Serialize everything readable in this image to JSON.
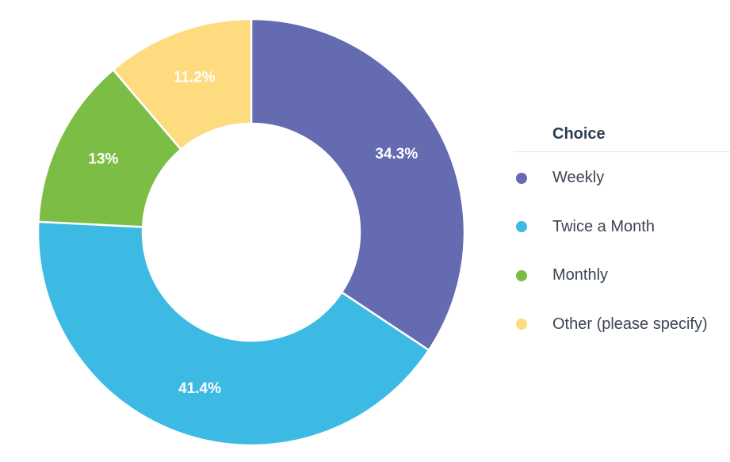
{
  "chart_data": {
    "type": "pie",
    "donut": true,
    "legend_title": "Choice",
    "legend_position": "right",
    "slices": [
      {
        "name": "Weekly",
        "value": 34.3,
        "label": "34.3%",
        "color": "#646bb0"
      },
      {
        "name": "Twice a Month",
        "value": 41.4,
        "label": "41.4%",
        "color": "#3cbae3"
      },
      {
        "name": "Monthly",
        "value": 13,
        "label": "13%",
        "color": "#7cbe45"
      },
      {
        "name": "Other (please specify)",
        "value": 11.2,
        "label": "11.2%",
        "color": "#fddb7e"
      }
    ]
  }
}
